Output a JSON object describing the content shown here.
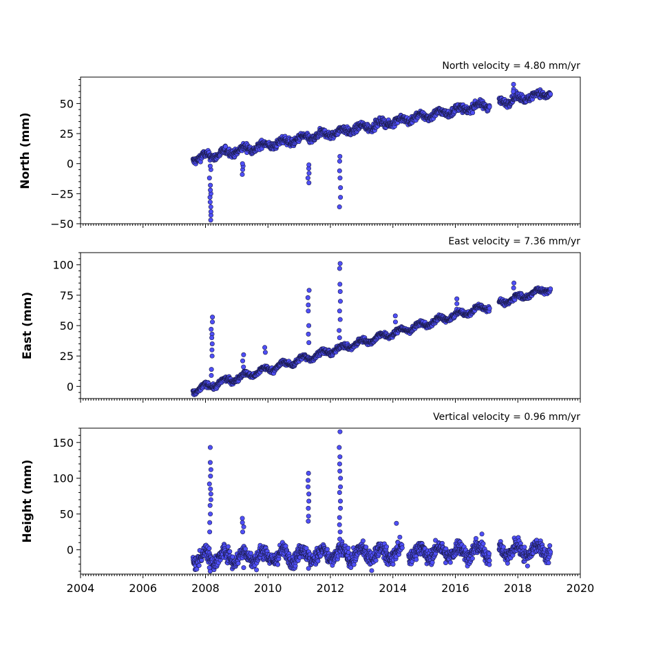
{
  "colors": {
    "marker_fill": "#4f4ff7",
    "marker_edge": "#1a1a4a"
  },
  "chart_data": [
    {
      "type": "scatter",
      "title": "North velocity = 4.80 mm/yr",
      "xlabel": "",
      "ylabel": "North (mm)",
      "xlim": [
        2004,
        2020
      ],
      "ylim": [
        -50,
        72
      ],
      "yticks": [
        -50,
        -25,
        0,
        25,
        50
      ],
      "ytick_labels": [
        "−50",
        "−25",
        "0",
        "25",
        "50"
      ],
      "xtick_labels_shown": false,
      "grid": false,
      "velocity": 4.8,
      "intercept": 4,
      "start": 2007.6,
      "end": 2019.05,
      "noise": 3,
      "gaps": [
        [
          2017.1,
          2017.4
        ]
      ],
      "spikes": [
        {
          "x": 2008.15,
          "values": [
            -47,
            -43,
            -40,
            -36,
            -32,
            -28,
            -25,
            -22,
            -18,
            -12,
            -5,
            -2
          ]
        },
        {
          "x": 2009.2,
          "values": [
            -9,
            -5,
            -2,
            0
          ]
        },
        {
          "x": 2011.3,
          "values": [
            -16,
            -12,
            -8,
            -4,
            -1
          ]
        },
        {
          "x": 2012.3,
          "values": [
            -36,
            -28,
            -20,
            -12,
            -6,
            2,
            6
          ]
        },
        {
          "x": 2017.85,
          "values": [
            66,
            62,
            60
          ]
        }
      ]
    },
    {
      "type": "scatter",
      "title": "East velocity = 7.36 mm/yr",
      "xlabel": "",
      "ylabel": "East (mm)",
      "xlim": [
        2004,
        2020
      ],
      "ylim": [
        -10,
        110
      ],
      "yticks": [
        0,
        25,
        50,
        75,
        100
      ],
      "ytick_labels": [
        "0",
        "25",
        "50",
        "75",
        "100"
      ],
      "xtick_labels_shown": false,
      "grid": false,
      "velocity": 7.36,
      "intercept": -3.5,
      "start": 2007.6,
      "end": 2019.05,
      "noise": 2,
      "gaps": [
        [
          2017.1,
          2017.4
        ]
      ],
      "spikes": [
        {
          "x": 2008.2,
          "values": [
            57,
            53,
            47,
            43,
            40,
            35,
            30,
            25,
            14,
            9
          ]
        },
        {
          "x": 2009.2,
          "values": [
            26,
            21,
            16
          ]
        },
        {
          "x": 2009.9,
          "values": [
            32,
            28
          ]
        },
        {
          "x": 2011.3,
          "values": [
            79,
            73,
            67,
            62,
            50,
            43,
            36
          ]
        },
        {
          "x": 2012.3,
          "values": [
            101,
            97,
            84,
            78,
            70,
            62,
            55,
            46,
            40
          ]
        },
        {
          "x": 2014.1,
          "values": [
            58,
            53
          ]
        },
        {
          "x": 2016.05,
          "values": [
            72,
            68
          ]
        },
        {
          "x": 2017.85,
          "values": [
            85,
            81
          ]
        }
      ]
    },
    {
      "type": "scatter",
      "title": "Vertical velocity = 0.96 mm/yr",
      "xlabel": "",
      "ylabel": "Height (mm)",
      "xlim": [
        2004,
        2020
      ],
      "ylim": [
        -34,
        170
      ],
      "yticks": [
        0,
        50,
        100,
        150
      ],
      "ytick_labels": [
        "0",
        "50",
        "100",
        "150"
      ],
      "xticks": [
        2004,
        2006,
        2008,
        2010,
        2012,
        2014,
        2016,
        2018,
        2020
      ],
      "xtick_labels": [
        "2004",
        "2006",
        "2008",
        "2010",
        "2012",
        "2014",
        "2016",
        "2018",
        "2020"
      ],
      "xtick_labels_shown": true,
      "grid": false,
      "velocity": 0.96,
      "intercept": -11,
      "start": 2007.6,
      "end": 2019.05,
      "noise": 10,
      "gaps": [
        [
          2014.3,
          2014.5
        ],
        [
          2017.1,
          2017.4
        ]
      ],
      "spikes": [
        {
          "x": 2008.15,
          "values": [
            143,
            122,
            112,
            103,
            92,
            85,
            78,
            70,
            62,
            50,
            38,
            25,
            -30,
            -25
          ]
        },
        {
          "x": 2009.2,
          "values": [
            44,
            38,
            32,
            25,
            -25
          ]
        },
        {
          "x": 2011.3,
          "values": [
            107,
            97,
            88,
            78,
            68,
            58,
            47,
            40,
            -26
          ]
        },
        {
          "x": 2012.3,
          "values": [
            165,
            143,
            130,
            120,
            110,
            100,
            88,
            80,
            68,
            58,
            45,
            35,
            25,
            15
          ]
        },
        {
          "x": 2014.1,
          "values": [
            37
          ]
        },
        {
          "x": 2016.85,
          "values": [
            22
          ]
        }
      ]
    }
  ]
}
